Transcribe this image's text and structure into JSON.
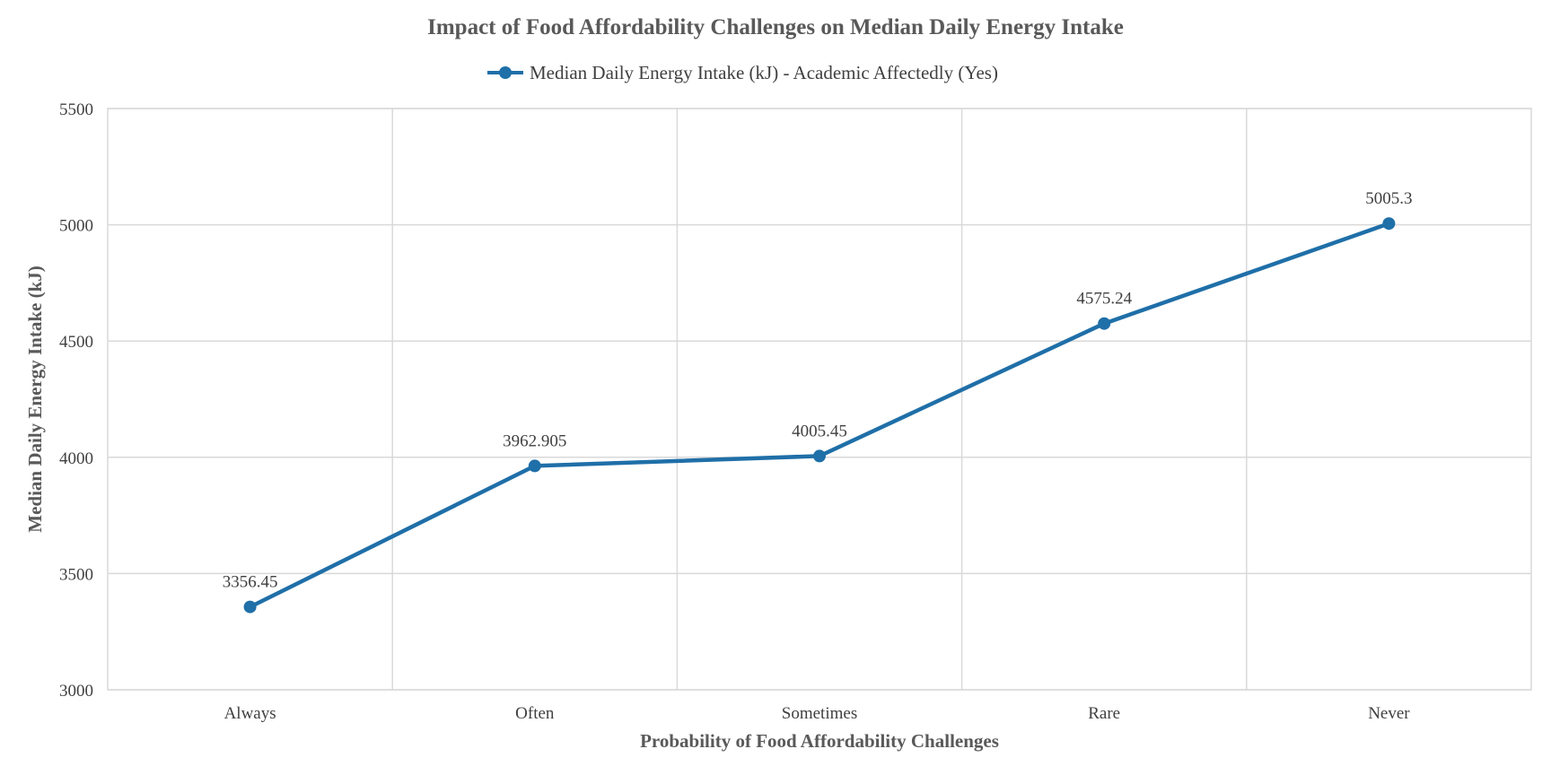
{
  "chart_data": {
    "type": "line",
    "title": "Impact of Food Affordability Challenges on Median Daily Energy Intake",
    "xlabel": "Probability of Food Affordability Challenges",
    "ylabel": "Median Daily Energy Intake (kJ)",
    "categories": [
      "Always",
      "Often",
      "Sometimes",
      "Rare",
      "Never"
    ],
    "series": [
      {
        "name": "Median Daily Energy Intake (kJ) - Academic Affectedly (Yes)",
        "values": [
          3356.45,
          3962.905,
          4005.45,
          4575.24,
          5005.3
        ],
        "data_labels": [
          "3356.45",
          "3962.905",
          "4005.45",
          "4575.24",
          "5005.3"
        ],
        "color": "#1f6fa8"
      }
    ],
    "ylim": [
      3000,
      5500
    ],
    "yticks": [
      3000,
      3500,
      4000,
      4500,
      5000,
      5500
    ],
    "grid": true,
    "legend_position": "top"
  }
}
